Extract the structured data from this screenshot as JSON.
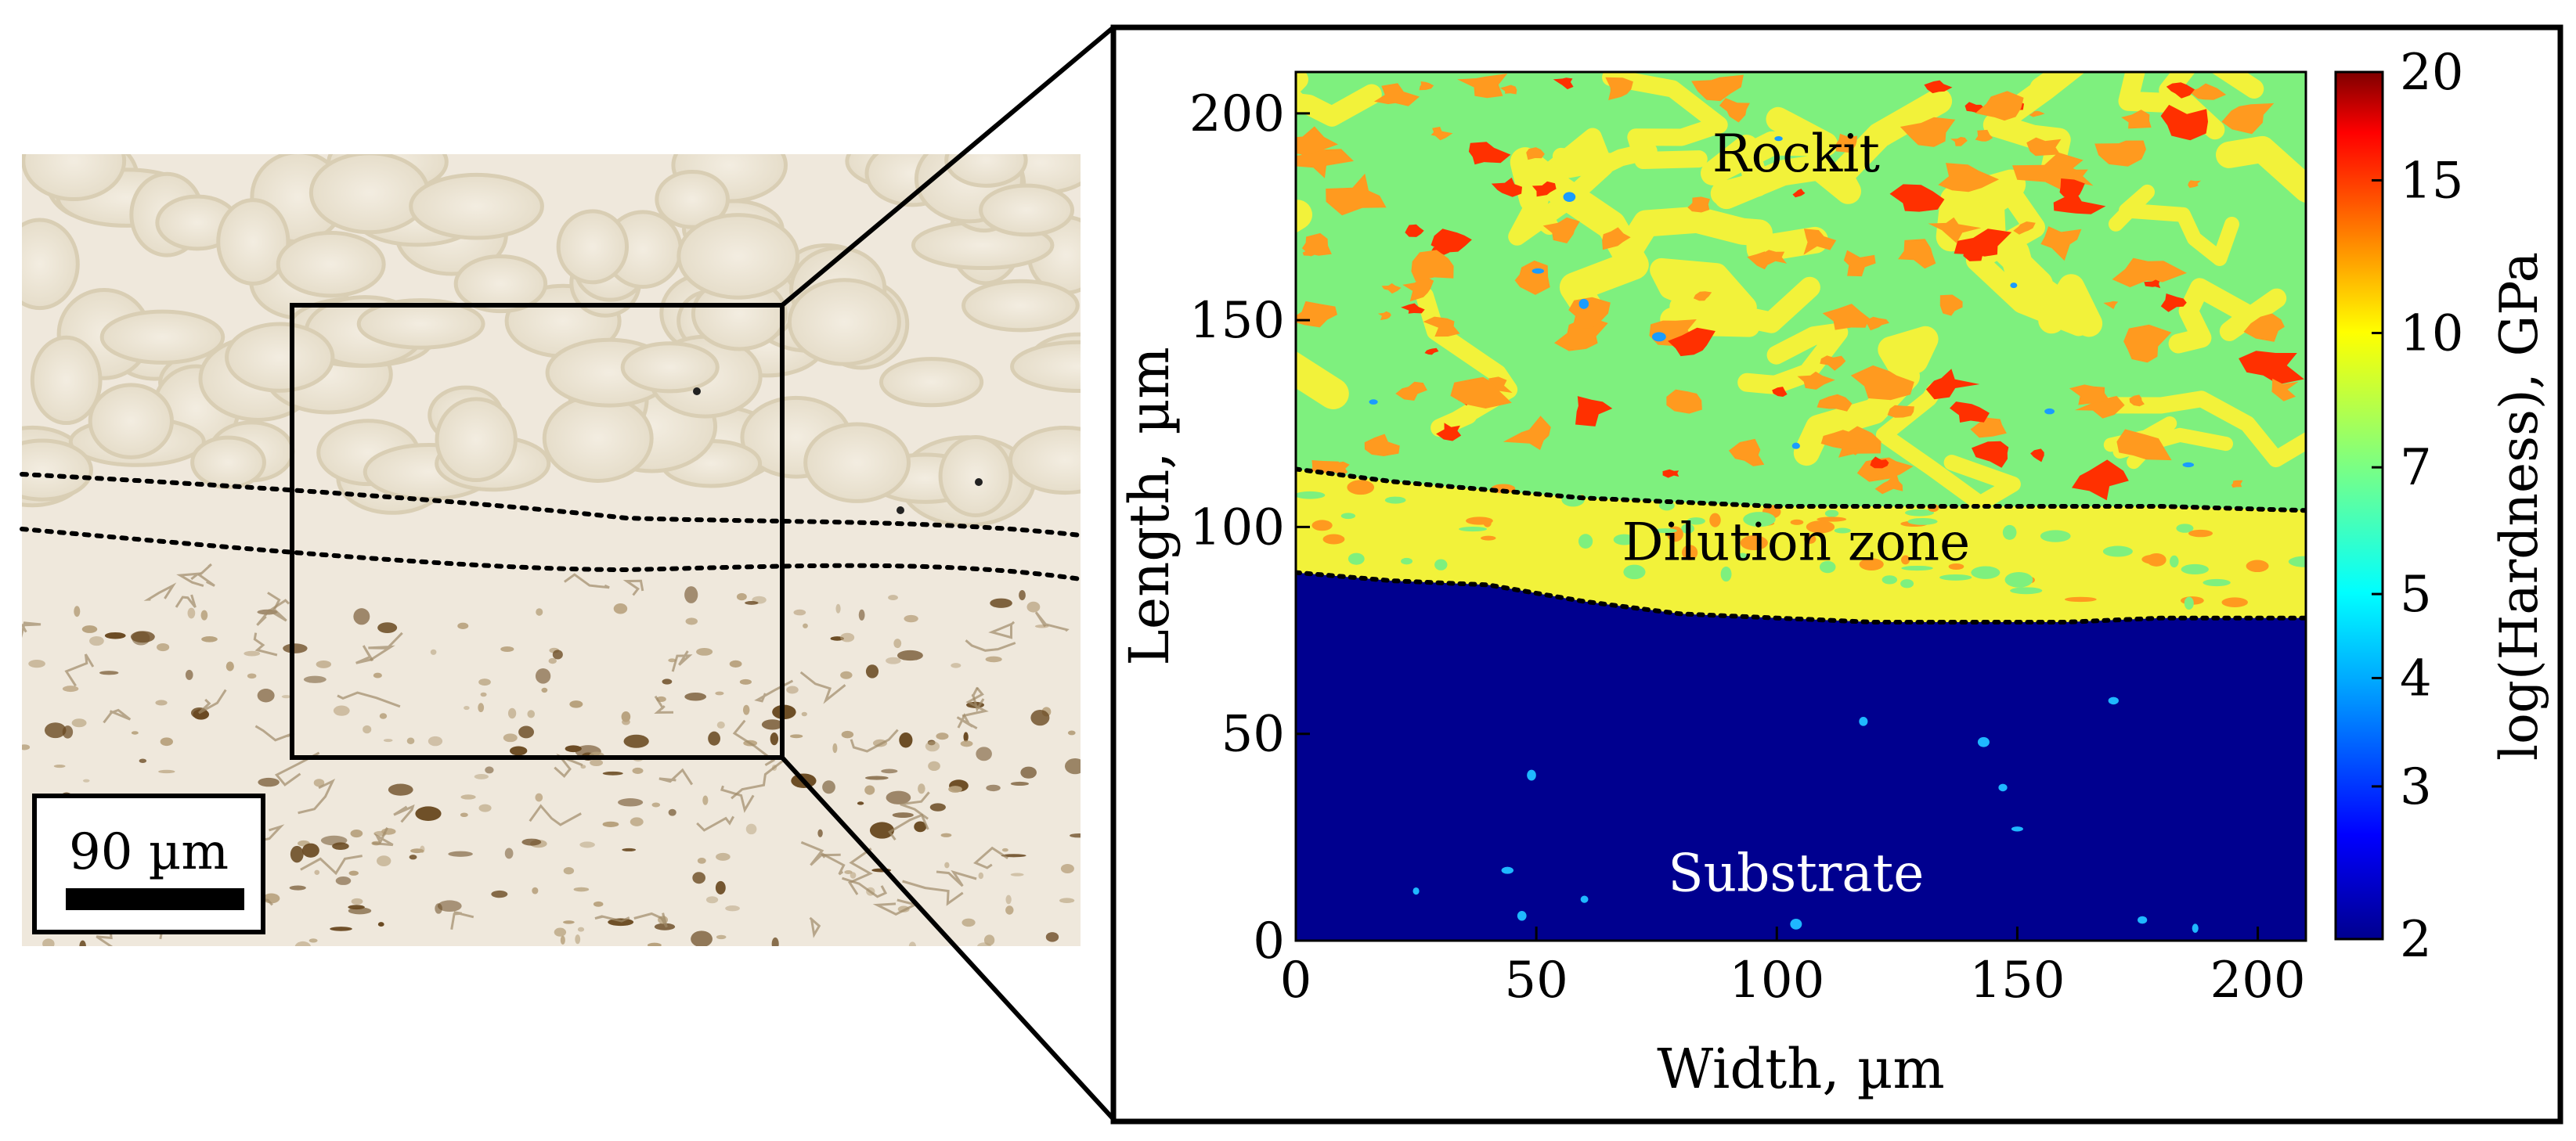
{
  "micrograph": {
    "scale_bar_label": "90 µm"
  },
  "chart_data": {
    "type": "heatmap",
    "title": "",
    "xlabel": "Width, µm",
    "ylabel": "Length, µm",
    "xlim": [
      0,
      210
    ],
    "ylim": [
      0,
      210
    ],
    "xticks": [
      0,
      50,
      100,
      150,
      200
    ],
    "yticks": [
      0,
      50,
      100,
      150,
      200
    ],
    "colorbar": {
      "label": "log(Hardness), GPa",
      "scale": "log",
      "range": [
        2,
        20
      ],
      "ticks": [
        2,
        3,
        4,
        5,
        7,
        10,
        15,
        20
      ],
      "colormap": "jet"
    },
    "regions": [
      {
        "name": "Rockit",
        "hardness_gpa_typical": 6,
        "hardness_gpa_range": [
          6,
          15
        ],
        "label_pos": [
          104,
          186
        ]
      },
      {
        "name": "Dilution zone",
        "hardness_gpa_typical": 8,
        "hardness_gpa_range": [
          7,
          9
        ],
        "label_pos": [
          104,
          92
        ]
      },
      {
        "name": "Substrate",
        "hardness_gpa_typical": 2,
        "hardness_gpa_range": [
          2,
          4
        ],
        "label_pos": [
          104,
          12
        ]
      }
    ],
    "boundaries": [
      {
        "name": "rockit-dilution",
        "x": [
          0,
          20,
          40,
          60,
          80,
          100,
          120,
          140,
          160,
          180,
          210
        ],
        "y": [
          114,
          111,
          109,
          107,
          106,
          105,
          105,
          105,
          105,
          105,
          104
        ]
      },
      {
        "name": "dilution-substrate",
        "x": [
          0,
          20,
          40,
          60,
          80,
          100,
          120,
          140,
          160,
          180,
          210
        ],
        "y": [
          89,
          87,
          86,
          82,
          79,
          78,
          77,
          77,
          77,
          78,
          78
        ]
      }
    ],
    "grid": false
  },
  "colors": {
    "rockit": "#7ef07e",
    "dilution": "#f2f23a",
    "substrate": "#00008f",
    "hard_phase": "#ff9a1f",
    "hardest": "#ff3000",
    "frame": "#000000"
  }
}
